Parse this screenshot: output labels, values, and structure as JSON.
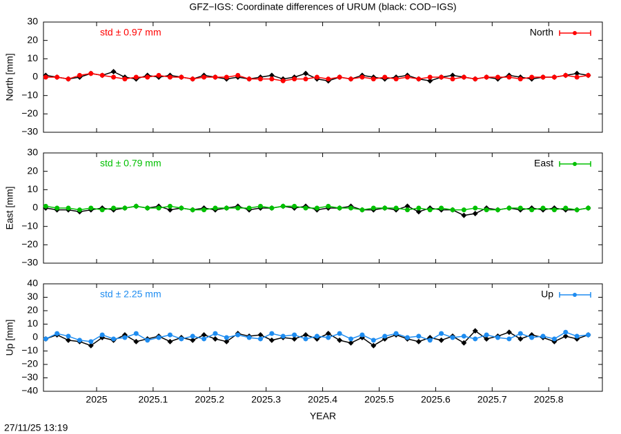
{
  "title": "GFZ−IGS: Coordinate differences of URUM (black: COD−IGS)",
  "footer": "27/11/25 13:19",
  "chart_data": [
    {
      "type": "line",
      "ylabel": "North [mm]",
      "annotation": "std ± 0.97 mm",
      "x": [
        2024.91,
        2024.93,
        2024.95,
        2024.97,
        2024.99,
        2025.01,
        2025.03,
        2025.05,
        2025.07,
        2025.09,
        2025.11,
        2025.13,
        2025.15,
        2025.17,
        2025.19,
        2025.21,
        2025.23,
        2025.25,
        2025.27,
        2025.29,
        2025.31,
        2025.33,
        2025.35,
        2025.37,
        2025.39,
        2025.41,
        2025.43,
        2025.45,
        2025.47,
        2025.49,
        2025.51,
        2025.53,
        2025.55,
        2025.57,
        2025.59,
        2025.61,
        2025.63,
        2025.65,
        2025.67,
        2025.69,
        2025.71,
        2025.73,
        2025.75,
        2025.77,
        2025.79,
        2025.81,
        2025.83,
        2025.85,
        2025.87
      ],
      "series": [
        {
          "color": "#000000",
          "values": [
            1,
            0,
            -1,
            0,
            2,
            1,
            3,
            0,
            -1,
            1,
            0,
            1,
            0,
            -1,
            1,
            0,
            -1,
            0,
            -1,
            0,
            1,
            -1,
            0,
            2,
            -1,
            -2,
            0,
            -1,
            1,
            0,
            -1,
            0,
            1,
            -1,
            -2,
            0,
            1,
            0,
            -1,
            0,
            -1,
            1,
            0,
            -1,
            0,
            0,
            1,
            2,
            1
          ]
        },
        {
          "name": "North",
          "color": "#ff0000",
          "values": [
            0,
            0,
            -1,
            1,
            2,
            1,
            0,
            -1,
            0,
            0,
            1,
            0,
            0,
            -1,
            0,
            0,
            0,
            1,
            -1,
            -1,
            -1,
            -2,
            -1,
            -1,
            0,
            -1,
            0,
            -1,
            0,
            -1,
            0,
            -1,
            0,
            -1,
            0,
            0,
            -1,
            0,
            -1,
            0,
            0,
            0,
            -1,
            0,
            0,
            0,
            1,
            0,
            1
          ]
        }
      ],
      "xlim": [
        2024.906,
        2025.895
      ],
      "ylim": [
        -30,
        30
      ],
      "yticks": [
        {
          "value": -30,
          "label": "−30"
        },
        {
          "value": -20,
          "label": "−20"
        },
        {
          "value": -10,
          "label": "−10"
        },
        0,
        10,
        20,
        30
      ]
    },
    {
      "type": "line",
      "ylabel": "East [mm]",
      "annotation": "std ± 0.79 mm",
      "x": [
        2024.91,
        2024.93,
        2024.95,
        2024.97,
        2024.99,
        2025.01,
        2025.03,
        2025.05,
        2025.07,
        2025.09,
        2025.11,
        2025.13,
        2025.15,
        2025.17,
        2025.19,
        2025.21,
        2025.23,
        2025.25,
        2025.27,
        2025.29,
        2025.31,
        2025.33,
        2025.35,
        2025.37,
        2025.39,
        2025.41,
        2025.43,
        2025.45,
        2025.47,
        2025.49,
        2025.51,
        2025.53,
        2025.55,
        2025.57,
        2025.59,
        2025.61,
        2025.63,
        2025.65,
        2025.67,
        2025.69,
        2025.71,
        2025.73,
        2025.75,
        2025.77,
        2025.79,
        2025.81,
        2025.83,
        2025.85,
        2025.87
      ],
      "series": [
        {
          "color": "#000000",
          "values": [
            0,
            -1,
            -1,
            -2,
            -1,
            0,
            -1,
            0,
            1,
            0,
            1,
            -1,
            0,
            -1,
            0,
            -1,
            0,
            1,
            -1,
            0,
            0,
            1,
            0,
            1,
            -1,
            0,
            0,
            1,
            -1,
            -1,
            0,
            -1,
            1,
            -2,
            0,
            -1,
            -1,
            -4,
            -3,
            0,
            -1,
            0,
            -1,
            0,
            -1,
            0,
            -1,
            -1,
            0
          ]
        },
        {
          "name": "East",
          "color": "#00c000",
          "values": [
            1,
            0,
            0,
            -1,
            0,
            -1,
            0,
            0,
            1,
            0,
            0,
            1,
            0,
            -1,
            -1,
            0,
            0,
            0,
            0,
            1,
            0,
            1,
            1,
            0,
            0,
            1,
            0,
            0,
            -1,
            0,
            0,
            0,
            -1,
            0,
            -1,
            0,
            -1,
            -1,
            0,
            -1,
            -1,
            0,
            0,
            -1,
            0,
            -1,
            0,
            -1,
            0
          ]
        }
      ],
      "xlim": [
        2024.906,
        2025.895
      ],
      "ylim": [
        -30,
        30
      ],
      "yticks": [
        {
          "value": -30,
          "label": "−30"
        },
        {
          "value": -20,
          "label": "−20"
        },
        {
          "value": -10,
          "label": "−10"
        },
        0,
        10,
        20,
        30
      ]
    },
    {
      "type": "line",
      "ylabel": "Up [mm]",
      "annotation": "std ± 2.25 mm",
      "xlabel": "YEAR",
      "x": [
        2024.91,
        2024.93,
        2024.95,
        2024.97,
        2024.99,
        2025.01,
        2025.03,
        2025.05,
        2025.07,
        2025.09,
        2025.11,
        2025.13,
        2025.15,
        2025.17,
        2025.19,
        2025.21,
        2025.23,
        2025.25,
        2025.27,
        2025.29,
        2025.31,
        2025.33,
        2025.35,
        2025.37,
        2025.39,
        2025.41,
        2025.43,
        2025.45,
        2025.47,
        2025.49,
        2025.51,
        2025.53,
        2025.55,
        2025.57,
        2025.59,
        2025.61,
        2025.63,
        2025.65,
        2025.67,
        2025.69,
        2025.71,
        2025.73,
        2025.75,
        2025.77,
        2025.79,
        2025.81,
        2025.83,
        2025.85,
        2025.87
      ],
      "series": [
        {
          "color": "#000000",
          "values": [
            -1,
            2,
            -2,
            -3,
            -6,
            0,
            -2,
            2,
            -3,
            -1,
            1,
            -3,
            0,
            -2,
            2,
            -1,
            -3,
            3,
            1,
            2,
            -2,
            0,
            -1,
            2,
            -1,
            3,
            -2,
            -4,
            0,
            -6,
            -1,
            2,
            -1,
            -3,
            0,
            -2,
            1,
            -4,
            5,
            -1,
            1,
            4,
            -1,
            2,
            0,
            -3,
            1,
            -1,
            2
          ]
        },
        {
          "name": "Up",
          "color": "#1e8cf0",
          "values": [
            -1,
            3,
            1,
            -2,
            -3,
            2,
            -1,
            0,
            3,
            -2,
            0,
            2,
            -1,
            1,
            -1,
            3,
            0,
            2,
            0,
            -1,
            3,
            1,
            2,
            -1,
            1,
            0,
            3,
            -1,
            2,
            -2,
            1,
            3,
            0,
            1,
            -2,
            3,
            0,
            1,
            -1,
            2,
            0,
            -1,
            3,
            0,
            1,
            -1,
            4,
            1,
            2
          ]
        }
      ],
      "xlim": [
        2024.906,
        2025.895
      ],
      "ylim": [
        -40,
        40
      ],
      "xticks": [
        2025,
        2025.1,
        2025.2,
        2025.3,
        2025.4,
        2025.5,
        2025.6,
        2025.7,
        2025.8
      ],
      "yticks": [
        {
          "value": -40,
          "label": "−40"
        },
        {
          "value": -30,
          "label": "−30"
        },
        {
          "value": -20,
          "label": "−20"
        },
        {
          "value": -10,
          "label": "−10"
        },
        0,
        10,
        20,
        30,
        40
      ]
    }
  ]
}
